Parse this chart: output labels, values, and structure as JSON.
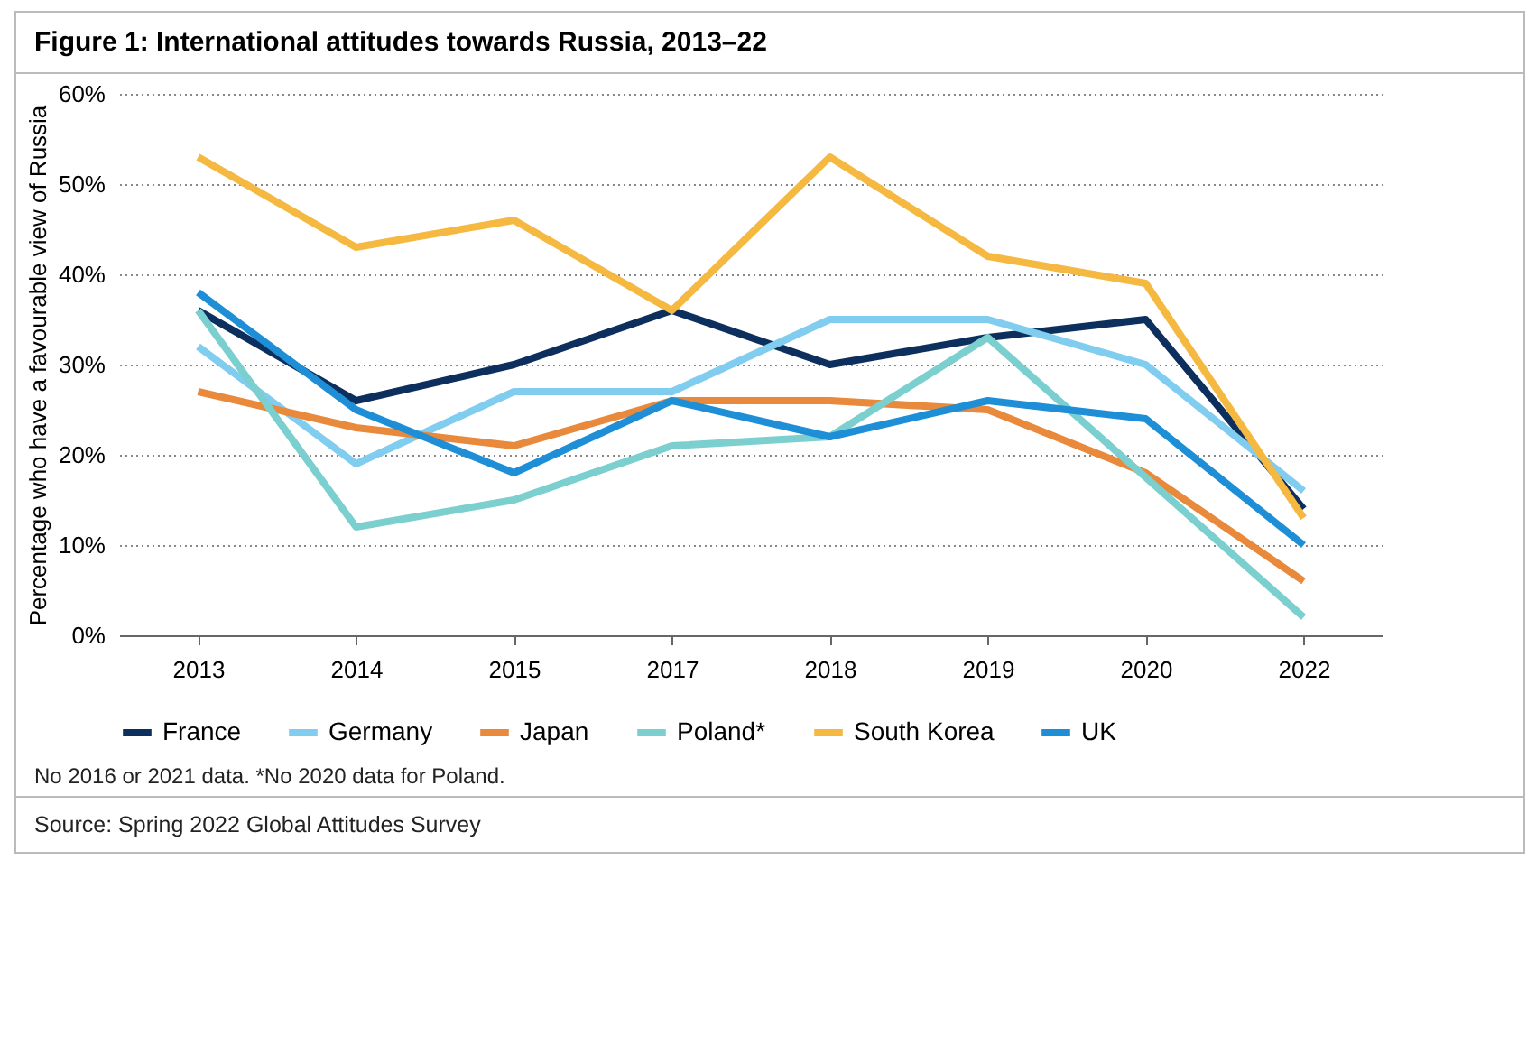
{
  "chart_data": {
    "type": "line",
    "title": "Figure 1: International attitudes towards Russia, 2013–22",
    "ylabel": "Percentage who have a favourable view of Russia",
    "categories": [
      "2013",
      "2014",
      "2015",
      "2017",
      "2018",
      "2019",
      "2020",
      "2022"
    ],
    "series": [
      {
        "name": "France",
        "color": "#0d2f5e",
        "values": [
          36,
          26,
          30,
          36,
          30,
          33,
          35,
          14
        ]
      },
      {
        "name": "Germany",
        "color": "#80cdf0",
        "values": [
          32,
          19,
          27,
          27,
          35,
          35,
          30,
          16
        ]
      },
      {
        "name": "Japan",
        "color": "#e8893c",
        "values": [
          27,
          23,
          21,
          26,
          26,
          25,
          18,
          6
        ]
      },
      {
        "name": "Poland*",
        "color": "#7ccfcf",
        "values": [
          36,
          12,
          15,
          21,
          22,
          33,
          null,
          2
        ]
      },
      {
        "name": "South Korea",
        "color": "#f5b942",
        "values": [
          53,
          43,
          46,
          36,
          53,
          42,
          39,
          13
        ]
      },
      {
        "name": "UK",
        "color": "#1e8fd6",
        "values": [
          38,
          25,
          18,
          26,
          22,
          26,
          24,
          10
        ]
      }
    ],
    "ylim": [
      0,
      60
    ],
    "yticks": [
      {
        "value": 0,
        "label": "0%"
      },
      {
        "value": 10,
        "label": "10%"
      },
      {
        "value": 20,
        "label": "20%"
      },
      {
        "value": 30,
        "label": "30%"
      },
      {
        "value": 40,
        "label": "40%"
      },
      {
        "value": 50,
        "label": "50%"
      },
      {
        "value": 60,
        "label": "60%"
      }
    ],
    "grid": "y",
    "legend": "bottom",
    "marker": "none",
    "line_style": "solid",
    "annotations": [
      "No 2016 or 2021 data. *No 2020 data for Poland.",
      "Source: Spring 2022 Global Attitudes Survey"
    ]
  }
}
